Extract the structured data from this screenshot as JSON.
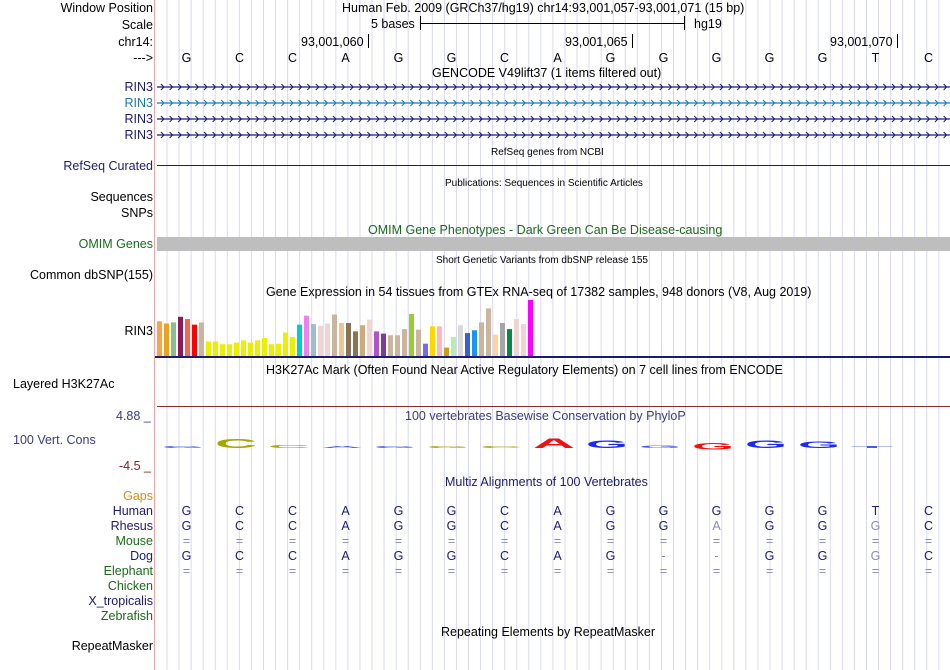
{
  "header": {
    "window_position_label": "Window Position",
    "window_position_value": "Human Feb. 2009 (GRCh37/hg19)   chr14:93,001,057-93,001,071 (15 bp)",
    "scale_label": "Scale",
    "scale_text": "5 bases",
    "scale_assembly": "hg19",
    "chrom_label": "chr14:",
    "coord_ticks": [
      "93,001,060",
      "93,001,065",
      "93,001,070"
    ],
    "strand_label": "--->",
    "bases": [
      "G",
      "C",
      "C",
      "A",
      "G",
      "G",
      "C",
      "A",
      "G",
      "G",
      "G",
      "G",
      "G",
      "T",
      "C"
    ]
  },
  "tracks": {
    "gencode": {
      "title": "GENCODE V49lift37 (1 items filtered out)",
      "items": [
        {
          "label": "RIN3",
          "color": "#1a1a7a"
        },
        {
          "label": "RIN3",
          "color": "#1a7ab0"
        },
        {
          "label": "RIN3",
          "color": "#1a1a7a"
        },
        {
          "label": "RIN3",
          "color": "#1a1a7a"
        }
      ]
    },
    "refseq": {
      "title": "RefSeq genes from NCBI",
      "label": "RefSeq Curated"
    },
    "publications": {
      "title": "Publications: Sequences in Scientific Articles",
      "labels": [
        "Sequences",
        "SNPs"
      ]
    },
    "omim": {
      "title": "OMIM Gene Phenotypes - Dark Green Can Be Disease-causing",
      "label": "OMIM Genes"
    },
    "dbsnp": {
      "title": "Short Genetic Variants from dbSNP release 155",
      "label": "Common dbSNP(155)"
    },
    "gtex": {
      "title": "Gene Expression in 54 tissues from GTEx RNA-seq of 17382 samples, 948 donors (V8, Aug 2019)",
      "label": "RIN3"
    },
    "h3k27ac": {
      "title": "H3K27Ac Mark (Often Found Near Active Regulatory Elements) on 7 cell lines from ENCODE",
      "label": "Layered H3K27Ac"
    },
    "phylop": {
      "title": "100 vertebrates Basewise Conservation by PhyloP",
      "label": "100 Vert. Cons",
      "max_label": "4.88 _",
      "min_label": "-4.5 _"
    },
    "multiz": {
      "title": "Multiz Alignments of 100 Vertebrates",
      "gaps_label": "Gaps",
      "species": [
        {
          "name": "Human",
          "color": "navy",
          "seq": [
            "G",
            "C",
            "C",
            "A",
            "G",
            "G",
            "C",
            "A",
            "G",
            "G",
            "G",
            "G",
            "G",
            "T",
            "C"
          ]
        },
        {
          "name": "Rhesus",
          "color": "navy",
          "seq": [
            "G",
            "C",
            "C",
            "A",
            "G",
            "G",
            "C",
            "A",
            "G",
            "G",
            "A",
            "G",
            "G",
            "G",
            "C"
          ]
        },
        {
          "name": "Mouse",
          "color": "green",
          "seq": [
            "=",
            "=",
            "=",
            "=",
            "=",
            "=",
            "=",
            "=",
            "=",
            "=",
            "=",
            "=",
            "=",
            "=",
            "="
          ]
        },
        {
          "name": "Dog",
          "color": "navy",
          "seq": [
            "G",
            "C",
            "C",
            "A",
            "G",
            "G",
            "C",
            "A",
            "G",
            "-",
            "-",
            "G",
            "G",
            "G",
            "C"
          ]
        },
        {
          "name": "Elephant",
          "color": "green",
          "seq": [
            "=",
            "=",
            "=",
            "=",
            "=",
            "=",
            "=",
            "=",
            "=",
            "=",
            "=",
            "=",
            "=",
            "=",
            "="
          ]
        },
        {
          "name": "Chicken",
          "color": "green",
          "seq": []
        },
        {
          "name": "X_tropicalis",
          "color": "navy",
          "seq": []
        },
        {
          "name": "Zebrafish",
          "color": "green",
          "seq": []
        }
      ]
    },
    "repeatmasker": {
      "title": "Repeating Elements by RepeatMasker",
      "label": "RepeatMasker"
    }
  },
  "chart_data": {
    "type": "bar",
    "title": "Gene Expression in 54 tissues from GTEx RNA-seq of 17382 samples, 948 donors (V8, Aug 2019)",
    "xlabel": "",
    "ylabel": "",
    "ylim": [
      0,
      1
    ],
    "values": [
      0.62,
      0.58,
      0.6,
      0.7,
      0.66,
      0.56,
      0.6,
      0.26,
      0.26,
      0.21,
      0.21,
      0.24,
      0.28,
      0.24,
      0.28,
      0.32,
      0.21,
      0.22,
      0.42,
      0.34,
      0.56,
      0.72,
      0.57,
      0.54,
      0.58,
      0.74,
      0.59,
      0.59,
      0.44,
      0.55,
      0.65,
      0.44,
      0.4,
      0.37,
      0.37,
      0.48,
      0.75,
      0.47,
      0.22,
      0.53,
      0.53,
      0.15,
      0.34,
      0.55,
      0.41,
      0.46,
      0.6,
      0.85,
      0.38,
      0.59,
      0.48,
      0.66,
      0.57,
      1.0
    ],
    "colors": [
      "#f7a34b",
      "#f0a01a",
      "#8fbc8f",
      "#8b1a5a",
      "#ee6a50",
      "#ff0000",
      "#cdb49c",
      "#eeee00",
      "#eeee00",
      "#eeee00",
      "#eeee00",
      "#eeee00",
      "#eeee00",
      "#eeee00",
      "#eeee00",
      "#eeee00",
      "#eeee00",
      "#eeee00",
      "#eeee00",
      "#eeee00",
      "#00cdcd",
      "#ee82ee",
      "#9ac0cd",
      "#eed5d2",
      "#eed5d2",
      "#cdb49c",
      "#eec591",
      "#8b7355",
      "#8b7355",
      "#cdaa7d",
      "#eed5d2",
      "#b452cd",
      "#7d3c98",
      "#cdb49c",
      "#cdb49c",
      "#cdb49c",
      "#9acd32",
      "#cdb49c",
      "#7b68ee",
      "#ffd700",
      "#ffb6c1",
      "#cd9b1d",
      "#b4eeb4",
      "#d9d9d9",
      "#3a5fcd",
      "#1e90ff",
      "#cdb49c",
      "#cdb49c",
      "#ffd39b",
      "#a6a6a6",
      "#008b45",
      "#eed5d2",
      "#eed5d2",
      "#ff00ff"
    ]
  },
  "phylop_glyphs": [
    {
      "base": "G",
      "color": "#4a5ae0",
      "h": 0.05,
      "pos": true
    },
    {
      "base": "C",
      "color": "#a6a600",
      "h": 0.4,
      "pos": true
    },
    {
      "base": "C",
      "color": "#a6a600",
      "h": 0.15,
      "pos": true
    },
    {
      "base": "A",
      "color": "#4a5ae0",
      "h": 0.02,
      "pos": true
    },
    {
      "base": "G",
      "color": "#4a5ae0",
      "h": 0.06,
      "pos": true
    },
    {
      "base": "G",
      "color": "#a6a600",
      "h": 0.03,
      "pos": true
    },
    {
      "base": "C",
      "color": "#a6a600",
      "h": 0.05,
      "pos": true
    },
    {
      "base": "A",
      "color": "#ee1111",
      "h": 0.45,
      "pos": true
    },
    {
      "base": "G",
      "color": "#1a2ae8",
      "h": 0.35,
      "pos": true
    },
    {
      "base": "G",
      "color": "#4a5ae0",
      "h": 0.12,
      "pos": true
    },
    {
      "base": "G",
      "color": "#ee1111",
      "h": 0.3,
      "pos": false
    },
    {
      "base": "G",
      "color": "#1a2ae8",
      "h": 0.35,
      "pos": true
    },
    {
      "base": "G",
      "color": "#1a2ae8",
      "h": 0.3,
      "pos": true
    },
    {
      "base": "T",
      "color": "#4a5ae0",
      "h": 0.05,
      "pos": true
    }
  ]
}
